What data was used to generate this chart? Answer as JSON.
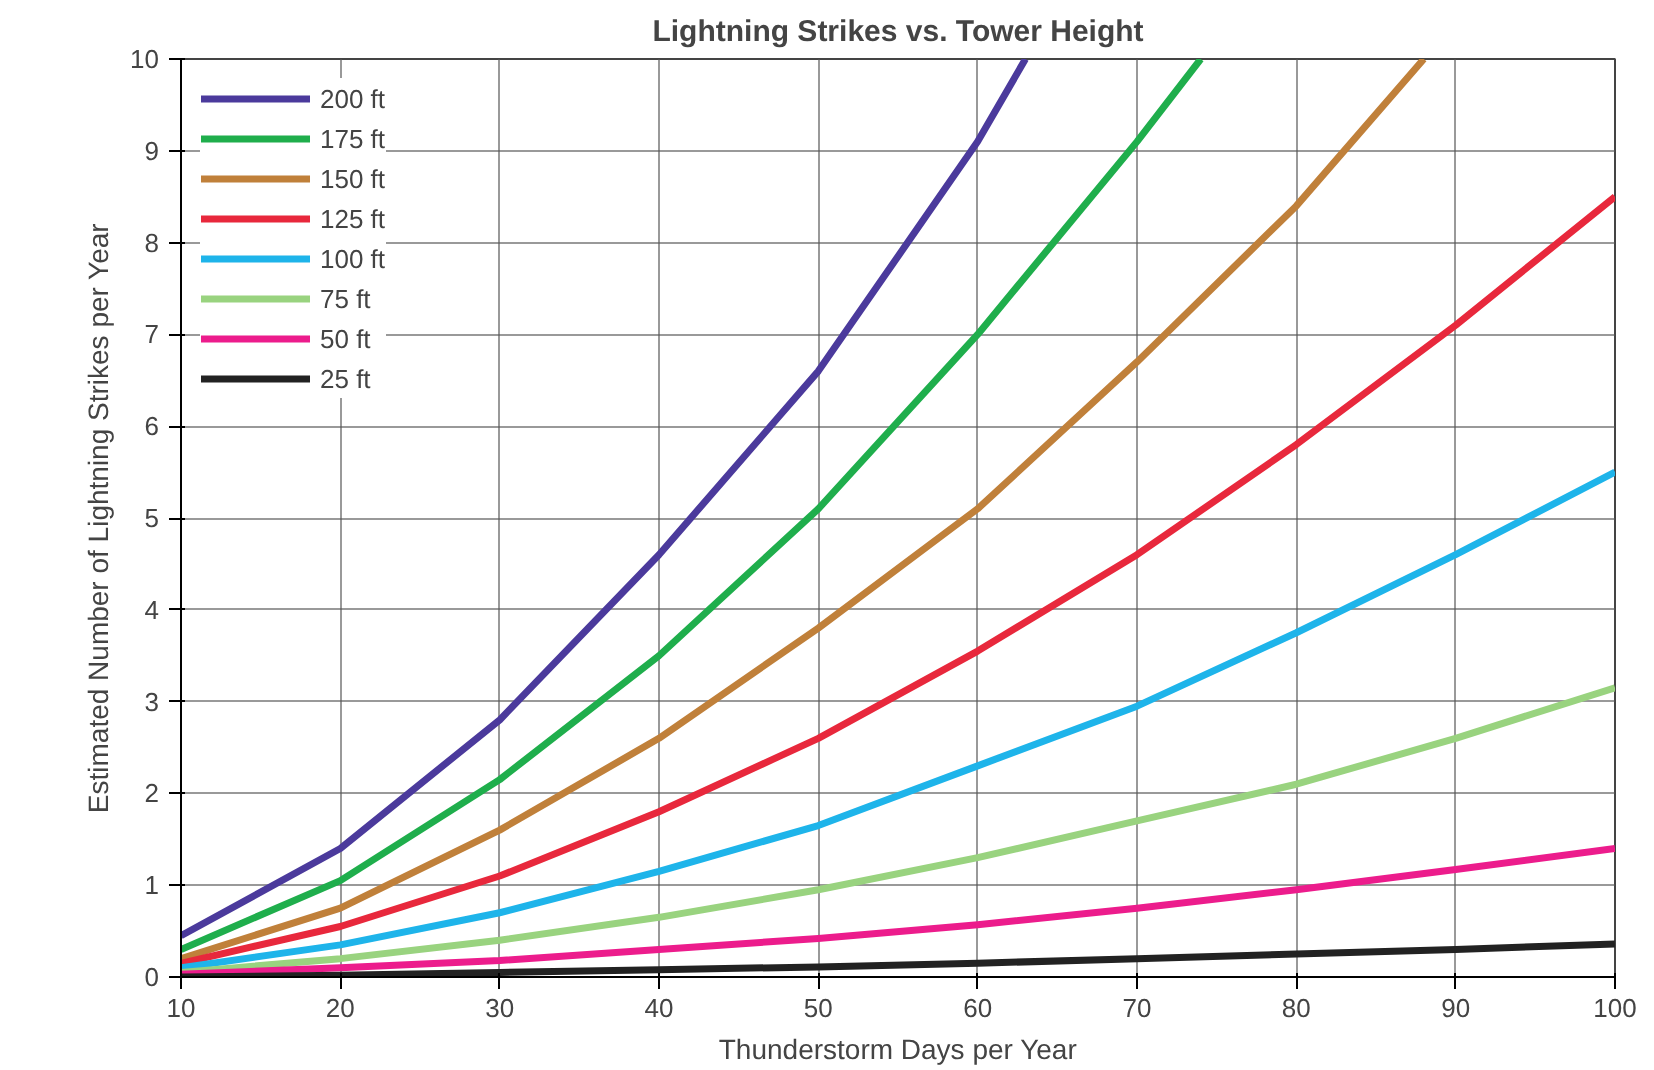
{
  "chart_data": {
    "type": "line",
    "title": "Lightning Strikes vs. Tower Height",
    "xlabel": "Thunderstorm Days per Year",
    "ylabel": "Estimated Number of Lightning Strikes per Year",
    "xlim": [
      10,
      100
    ],
    "ylim": [
      0,
      10
    ],
    "xticks": [
      10,
      20,
      30,
      40,
      50,
      60,
      70,
      80,
      90,
      100
    ],
    "yticks": [
      0,
      1,
      2,
      3,
      4,
      5,
      6,
      7,
      8,
      9,
      10
    ],
    "grid": true,
    "legend": "top left",
    "marker": "none",
    "line_style": "solid",
    "series": [
      {
        "name": "200 ft",
        "color": "#4b3a9c",
        "x": [
          10,
          20,
          30,
          40,
          50,
          60,
          63
        ],
        "values": [
          0.45,
          1.4,
          2.8,
          4.6,
          6.6,
          9.1,
          10
        ]
      },
      {
        "name": "175 ft",
        "color": "#1fae4c",
        "x": [
          10,
          20,
          30,
          40,
          50,
          60,
          70,
          74
        ],
        "values": [
          0.3,
          1.05,
          2.15,
          3.5,
          5.1,
          7.0,
          9.1,
          10
        ]
      },
      {
        "name": "150 ft",
        "color": "#c0803a",
        "x": [
          10,
          20,
          30,
          40,
          50,
          60,
          70,
          80,
          88
        ],
        "values": [
          0.2,
          0.75,
          1.6,
          2.6,
          3.8,
          5.1,
          6.7,
          8.4,
          10
        ]
      },
      {
        "name": "125 ft",
        "color": "#e8283c",
        "x": [
          10,
          20,
          30,
          40,
          50,
          60,
          70,
          80,
          90,
          100
        ],
        "values": [
          0.15,
          0.55,
          1.1,
          1.8,
          2.6,
          3.55,
          4.6,
          5.8,
          7.1,
          8.5
        ]
      },
      {
        "name": "100 ft",
        "color": "#1eb4ea",
        "x": [
          10,
          20,
          30,
          40,
          50,
          60,
          70,
          80,
          90,
          100
        ],
        "values": [
          0.1,
          0.35,
          0.7,
          1.15,
          1.65,
          2.3,
          2.95,
          3.75,
          4.6,
          5.5
        ]
      },
      {
        "name": "75 ft",
        "color": "#99d37f",
        "x": [
          10,
          20,
          30,
          40,
          50,
          60,
          70,
          80,
          90,
          100
        ],
        "values": [
          0.05,
          0.2,
          0.4,
          0.65,
          0.95,
          1.3,
          1.7,
          2.1,
          2.6,
          3.15
        ]
      },
      {
        "name": "50 ft",
        "color": "#ec1c8c",
        "x": [
          10,
          20,
          30,
          40,
          50,
          60,
          70,
          80,
          90,
          100
        ],
        "values": [
          0.03,
          0.1,
          0.18,
          0.3,
          0.42,
          0.57,
          0.75,
          0.95,
          1.17,
          1.4
        ]
      },
      {
        "name": "25 ft",
        "color": "#222222",
        "x": [
          10,
          20,
          30,
          40,
          50,
          60,
          70,
          80,
          90,
          100
        ],
        "values": [
          0,
          0.02,
          0.05,
          0.08,
          0.11,
          0.15,
          0.2,
          0.25,
          0.3,
          0.36
        ]
      }
    ]
  }
}
